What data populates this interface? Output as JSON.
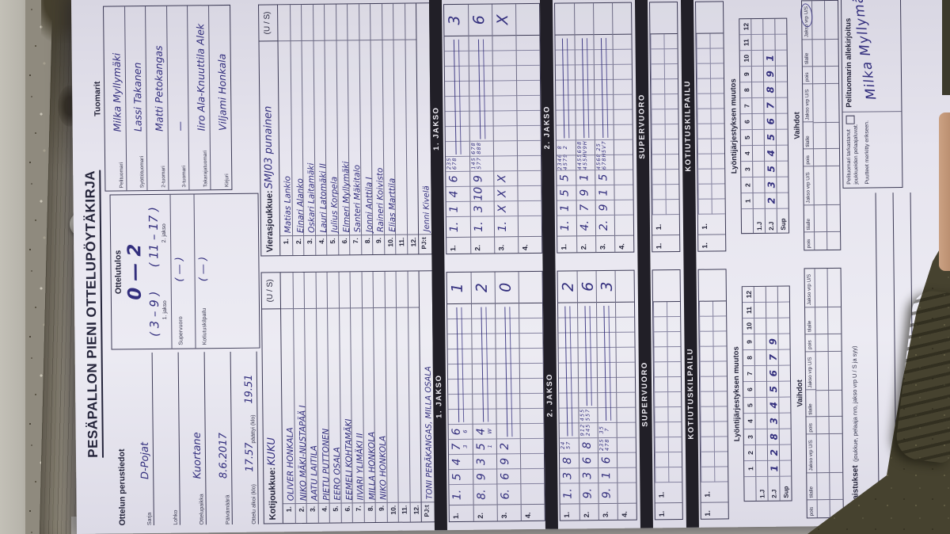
{
  "title": "PESÄPALLON PIENI OTTELUPÖYTÄKIRJA",
  "basics": {
    "heading": "Ottelun perustiedot",
    "fields": [
      {
        "label": "Sarja",
        "value": "D-Pojat"
      },
      {
        "label": "Lohko",
        "value": ""
      },
      {
        "label": "Ottelupaikka",
        "value": "Kuortane"
      },
      {
        "label": "Päivämäärä",
        "value": "8.6.2017"
      }
    ],
    "start_label": "Ottelu alkoi (klo)",
    "start_value": "17.57",
    "end_label": "päättyi (klo)",
    "end_value": "19.51"
  },
  "score": {
    "heading": "Ottelutulos",
    "total": "0  —  2",
    "jakso1": "( 3 – 9 )",
    "jakso2": "( 11 – 17 )",
    "jakso1_label": "1. jakso",
    "jakso2_label": "2. jakso",
    "supervuoro_label": "Supervuoro",
    "supervuoro_value": "(  —  )",
    "kotiutus_label": "Kotiutuskilpailu",
    "kotiutus_value": "(  —  )"
  },
  "referees": {
    "heading": "Tuomarit",
    "rows": [
      {
        "label": "Pelituomari",
        "value": "Milka Myllymäki"
      },
      {
        "label": "Syöttötuomari",
        "value": "Lassi Takanen"
      },
      {
        "label": "2-tuomari",
        "value": "Matti Petokangas"
      },
      {
        "label": "3-tuomari",
        "value": "—"
      },
      {
        "label": "Takarajatuomari",
        "value": "Iiro Ala-Knuuttila Alek"
      },
      {
        "label": "Kirjuri",
        "value": "Viljami Honkala"
      }
    ]
  },
  "bands": {
    "jakso1": "1. JAKSO",
    "jakso2": "2. JAKSO",
    "supervuoro": "SUPERVUORO",
    "kotiutus": "KOTIUTUSKILPAILU"
  },
  "lineup_heading": "Lyöntijärjestyksen muutos",
  "vaihdot_heading": "Vaihdot",
  "vaihdot_cols": [
    "pois",
    "tilalle",
    "Jakso vrp U/S",
    "pois",
    "tilalle",
    "Jakso vrp U/S",
    "pois",
    "tilalle",
    "Jakso vrp U/S"
  ],
  "lineup_cols": [
    "1",
    "2",
    "3",
    "4",
    "5",
    "6",
    "7",
    "8",
    "9",
    "10",
    "11",
    "12"
  ],
  "home": {
    "team_label": "Kotijoukkue:",
    "team": "KUKU",
    "us_header": "(U / S)",
    "players": [
      "OLIVER HONKALA",
      "NIKO MÄKI-NUSTAPÄÄ  I",
      "AATU LAITILA",
      "PIETU PUTTONEN",
      "EERO OSALA",
      "EEMELI KOHTAMÄKI",
      "IIVARI YLIMÄKI  II",
      "MILLA HONKOLA",
      "NIKO HONKOLA",
      "",
      "",
      ""
    ],
    "pj_label": "PJ:t",
    "pj": "TONI PERÄKANGAS, MILLA OSALA",
    "jakso1_rows": [
      {
        "n": "1.",
        "lead": "1.",
        "cells": [
          {
            "m": "5"
          },
          {
            "m": "4"
          },
          {
            "m": "7",
            "s": "3"
          },
          {
            "m": "6",
            "s": "6"
          }
        ],
        "dash": true,
        "total": "1"
      },
      {
        "n": "2.",
        "lead": "8.",
        "cells": [
          {
            "m": "9"
          },
          {
            "m": "3"
          },
          {
            "m": "5",
            "s": "1"
          },
          {
            "m": "4",
            "s": "W"
          }
        ],
        "dash": true,
        "total": "2"
      },
      {
        "n": "3.",
        "lead": "6.",
        "cells": [
          {
            "m": "6"
          },
          {
            "m": "9"
          },
          {
            "m": "2"
          }
        ],
        "dash": true,
        "total": "0"
      },
      {
        "n": "4.",
        "lead": "",
        "cells": [],
        "dash": false,
        "total": ""
      }
    ],
    "jakso2_rows": [
      {
        "n": "1.",
        "lead": "1.",
        "cells": [
          {
            "m": "3"
          },
          {
            "m": "8"
          },
          {
            "s": "2 4",
            "b": "5 7"
          }
        ],
        "dash": true,
        "total": "2"
      },
      {
        "n": "2.",
        "lead": "9.",
        "cells": [
          {
            "m": "3"
          },
          {
            "m": "6"
          },
          {
            "m": "8"
          },
          {
            "s": "9 1 2",
            "b": "2 4 5"
          },
          {
            "s": "4 5 5",
            "b": "5 5 7"
          }
        ],
        "dash": true,
        "total": "6"
      },
      {
        "n": "3.",
        "lead": "9.",
        "cells": [
          {
            "m": "1"
          },
          {
            "m": "6"
          },
          {
            "s": "2 3 5",
            "b": "4 7 8"
          },
          {
            "s": "3 5",
            "b": "7"
          }
        ],
        "dash": true,
        "total": "3"
      },
      {
        "n": "4.",
        "lead": "",
        "cells": [],
        "dash": false,
        "total": ""
      }
    ],
    "sv_n": "1.",
    "sv_lead": "1.",
    "kk_n": "1.",
    "kk_lead": "1.",
    "lineup_rows": [
      {
        "label": "1.J",
        "vals": [
          "",
          "",
          "",
          "",
          "",
          "",
          "",
          "",
          "",
          "",
          "",
          ""
        ]
      },
      {
        "label": "2.J",
        "vals": [
          "1",
          "2",
          "8",
          "3",
          "4",
          "5",
          "6",
          "7",
          "9",
          "",
          "",
          ""
        ]
      },
      {
        "label": "Sup",
        "vals": [
          "",
          "",
          "",
          "",
          "",
          "",
          "",
          "",
          "",
          "",
          "",
          ""
        ]
      }
    ]
  },
  "away": {
    "team_label": "Vierasjoukkue:",
    "team": "SMJ03 punainen",
    "us_header": "(U / S)",
    "players": [
      "Matias Lankio",
      "Einari Alanko",
      "Oskari Laitamäki",
      "Lauri Latomäki  II",
      "Julius Korpela",
      "Elmeri Myllymäki",
      "Santeri Mäkitalo",
      "Jonni Anttila  I",
      "Raineri Koivisto",
      "Elias Marttila",
      "",
      ""
    ],
    "pj_label": "PJ:t",
    "pj": "Jenni Kivelä",
    "jakso1_rows": [
      {
        "n": "1.",
        "lead": "1.",
        "cells": [
          {
            "m": "1"
          },
          {
            "m": "4"
          },
          {
            "m": "6"
          },
          {
            "s": "2 3 5",
            "b": "6 7 8"
          }
        ],
        "dash": true,
        "total": "3"
      },
      {
        "n": "2.",
        "lead": "1.",
        "cells": [
          {
            "m": "3"
          },
          {
            "m": "10"
          },
          {
            "m": "9"
          },
          {
            "s": "1 4 5",
            "b": "5 7 7"
          },
          {
            "s": "6 7 8",
            "b": "8 8 8"
          }
        ],
        "dash": true,
        "total": "6"
      },
      {
        "n": "3.",
        "lead": "1.",
        "cells": [
          {
            "m": "X"
          },
          {
            "m": "X"
          },
          {
            "m": "X"
          }
        ],
        "dash": false,
        "total": "X"
      },
      {
        "n": "4.",
        "lead": "",
        "cells": [],
        "dash": false,
        "total": ""
      }
    ],
    "jakso2_rows": [
      {
        "n": "1.",
        "lead": "1.",
        "cells": [
          {
            "m": "1"
          },
          {
            "m": "5"
          },
          {
            "m": "5"
          },
          {
            "s": "2 3 4 6",
            "b": "4 5 7 9"
          },
          {
            "s": "8",
            "b": "2"
          }
        ],
        "dash": true,
        "total": ""
      },
      {
        "n": "2.",
        "lead": "4.",
        "cells": [
          {
            "m": "7"
          },
          {
            "m": "9"
          },
          {
            "m": "1"
          },
          {
            "s": "4 4 5 5",
            "b": "4 5 5 H"
          },
          {
            "s": "6 9 8",
            "b": "V 9 H"
          }
        ],
        "dash": true,
        "total": ""
      },
      {
        "n": "3.",
        "lead": "2.",
        "cells": [
          {
            "m": "9"
          },
          {
            "m": "1"
          },
          {
            "m": "5"
          },
          {
            "s": "4 5 6 8",
            "b": "6 7 8 H"
          },
          {
            "s": "2 5",
            "b": "5 V 7"
          }
        ],
        "dash": true,
        "total": ""
      },
      {
        "n": "4.",
        "lead": "",
        "cells": [],
        "dash": false,
        "total": ""
      }
    ],
    "sv_n": "1.",
    "sv_lead": "1.",
    "kk_n": "1.",
    "kk_lead": "1.",
    "lineup_rows": [
      {
        "label": "1.J",
        "vals": [
          "",
          "",
          "",
          "",
          "",
          "",
          "",
          "",
          "",
          "",
          "",
          ""
        ]
      },
      {
        "label": "2.J",
        "vals": [
          "2",
          "3",
          "5",
          "4",
          "5",
          "6",
          "7",
          "8",
          "9",
          "1",
          "",
          ""
        ]
      },
      {
        "label": "Sup",
        "vals": [
          "",
          "",
          "",
          "",
          "",
          "",
          "",
          "",
          "",
          "",
          "",
          ""
        ]
      }
    ]
  },
  "penalties": {
    "label": "Rangaistukset",
    "sub": "(joukkue, pelaaja nro, jakso vrp U / S ja syy)"
  },
  "signature": {
    "check_line1": "Pelituomari tarkastanut",
    "check_line2": "joukkueiden pelaajaluvat.",
    "check_line3": "Puutteet merkitty erikseen.",
    "label": "Pelituomarin allekirjoitus",
    "name": "Milka Myllymäki"
  }
}
